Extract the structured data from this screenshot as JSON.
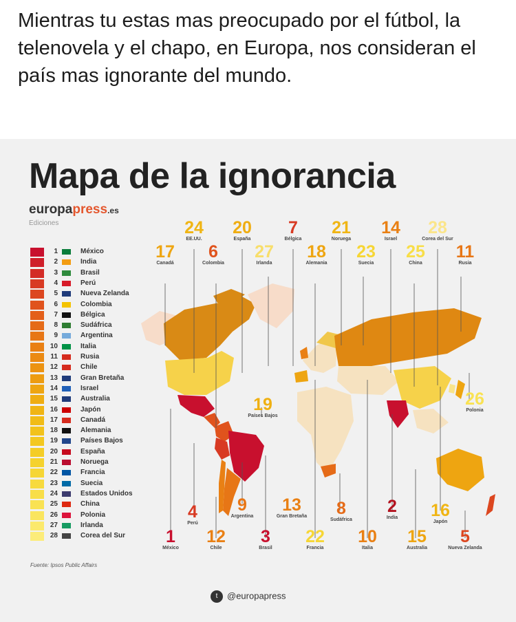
{
  "post": {
    "text": "Mientras tu estas mas preocupado por el fútbol,  la telenovela y el chapo,  en Europa, nos consideran el país mas ignorante del mundo."
  },
  "infographic": {
    "title": "Mapa de la ignorancia",
    "brand_main": "europa",
    "brand_accent": "press",
    "brand_tld": ".es",
    "editions": "Ediciones",
    "source": "Fuente: Ipsos Public Affairs",
    "social_handle": "@europapress",
    "social_icon": "twitter-icon"
  },
  "legend": [
    {
      "rank": "1",
      "name": "México",
      "color": "#c8102e",
      "flag": "#0a7d3b"
    },
    {
      "rank": "2",
      "name": "India",
      "color": "#cf1f2a",
      "flag": "#f39c12"
    },
    {
      "rank": "3",
      "name": "Brasil",
      "color": "#d32c27",
      "flag": "#2e8b3d"
    },
    {
      "rank": "4",
      "name": "Perú",
      "color": "#d83a23",
      "flag": "#d71a28"
    },
    {
      "rank": "5",
      "name": "Nueva Zelanda",
      "color": "#dc4720",
      "flag": "#1f3b7a"
    },
    {
      "rank": "6",
      "name": "Colombia",
      "color": "#e0531d",
      "flag": "#f4c300"
    },
    {
      "rank": "7",
      "name": "Bélgica",
      "color": "#e35f1a",
      "flag": "#111111"
    },
    {
      "rank": "8",
      "name": "Sudáfrica",
      "color": "#e56b18",
      "flag": "#2e7d32"
    },
    {
      "rank": "9",
      "name": "Argentina",
      "color": "#e77616",
      "flag": "#75aadb"
    },
    {
      "rank": "10",
      "name": "Italia",
      "color": "#e98014",
      "flag": "#009246"
    },
    {
      "rank": "11",
      "name": "Rusia",
      "color": "#eb8a13",
      "flag": "#d52b1e"
    },
    {
      "rank": "12",
      "name": "Chile",
      "color": "#ec9312",
      "flag": "#d52b1e"
    },
    {
      "rank": "13",
      "name": "Gran Bretaña",
      "color": "#ed9c11",
      "flag": "#1f3b7a"
    },
    {
      "rank": "14",
      "name": "Israel",
      "color": "#eea511",
      "flag": "#1f5fb8"
    },
    {
      "rank": "15",
      "name": "Australia",
      "color": "#efad12",
      "flag": "#1f3b7a"
    },
    {
      "rank": "16",
      "name": "Japón",
      "color": "#f0b514",
      "flag": "#cc0000"
    },
    {
      "rank": "17",
      "name": "Canadá",
      "color": "#f1bc17",
      "flag": "#d52b1e"
    },
    {
      "rank": "18",
      "name": "Alemania",
      "color": "#f2c21b",
      "flag": "#111111"
    },
    {
      "rank": "19",
      "name": "Países Bajos",
      "color": "#f3c820",
      "flag": "#21468b"
    },
    {
      "rank": "20",
      "name": "España",
      "color": "#f4cd26",
      "flag": "#c60b1e"
    },
    {
      "rank": "21",
      "name": "Noruega",
      "color": "#f5d22d",
      "flag": "#ba0c2f"
    },
    {
      "rank": "22",
      "name": "Francia",
      "color": "#f6d635",
      "flag": "#0055a4"
    },
    {
      "rank": "23",
      "name": "Suecia",
      "color": "#f7da3e",
      "flag": "#006aa7"
    },
    {
      "rank": "24",
      "name": "Estados Unidos",
      "color": "#f8de48",
      "flag": "#3c3b6e"
    },
    {
      "rank": "25",
      "name": "China",
      "color": "#f9e253",
      "flag": "#de2910"
    },
    {
      "rank": "26",
      "name": "Polonia",
      "color": "#fae55f",
      "flag": "#dc143c"
    },
    {
      "rank": "27",
      "name": "Irlanda",
      "color": "#fbe96c",
      "flag": "#169b62"
    },
    {
      "rank": "28",
      "name": "Corea del Sur",
      "color": "#fcec7a",
      "flag": "#444444"
    }
  ],
  "callouts": [
    {
      "num": "24",
      "name": "EE.UU.",
      "color": "#f0b514"
    },
    {
      "num": "20",
      "name": "España",
      "color": "#efad12"
    },
    {
      "num": "7",
      "name": "Bélgica",
      "color": "#d83a23"
    },
    {
      "num": "21",
      "name": "Noruega",
      "color": "#f0b514"
    },
    {
      "num": "14",
      "name": "Israel",
      "color": "#e98014"
    },
    {
      "num": "28",
      "name": "Corea del Sur",
      "color": "#fbe58a"
    },
    {
      "num": "17",
      "name": "Canadá",
      "color": "#eea511"
    },
    {
      "num": "6",
      "name": "Colombia",
      "color": "#e0531d"
    },
    {
      "num": "27",
      "name": "Irlanda",
      "color": "#f8de6a"
    },
    {
      "num": "18",
      "name": "Alemania",
      "color": "#eea511"
    },
    {
      "num": "23",
      "name": "Suecia",
      "color": "#f6d635"
    },
    {
      "num": "25",
      "name": "China",
      "color": "#f8de48"
    },
    {
      "num": "11",
      "name": "Rusia",
      "color": "#e77616"
    },
    {
      "num": "19",
      "name": "Países Bajos",
      "color": "#efb012"
    },
    {
      "num": "26",
      "name": "Polonia",
      "color": "#f9e253"
    },
    {
      "num": "4",
      "name": "Perú",
      "color": "#d83a23"
    },
    {
      "num": "9",
      "name": "Argentina",
      "color": "#e77616"
    },
    {
      "num": "13",
      "name": "Gran Bretaña",
      "color": "#e98014"
    },
    {
      "num": "8",
      "name": "Sudáfrica",
      "color": "#e56b18"
    },
    {
      "num": "2",
      "name": "India",
      "color": "#b3131f"
    },
    {
      "num": "16",
      "name": "Japón",
      "color": "#f0b514"
    },
    {
      "num": "1",
      "name": "México",
      "color": "#c8102e"
    },
    {
      "num": "12",
      "name": "Chile",
      "color": "#e98014"
    },
    {
      "num": "3",
      "name": "Brasil",
      "color": "#c8102e"
    },
    {
      "num": "22",
      "name": "Francia",
      "color": "#f6d635"
    },
    {
      "num": "10",
      "name": "Italia",
      "color": "#e98014"
    },
    {
      "num": "15",
      "name": "Australia",
      "color": "#eea511"
    },
    {
      "num": "5",
      "name": "Nueva Zelanda",
      "color": "#dc4720"
    }
  ]
}
